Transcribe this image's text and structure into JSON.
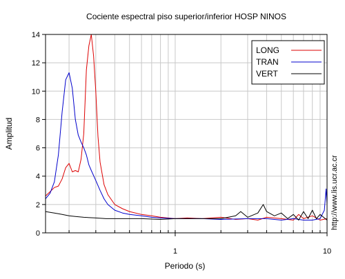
{
  "chart_data": {
    "type": "line",
    "title": "Cociente espectral piso superior/inferior  HOSP NINOS",
    "xlabel": "Periodo (s)",
    "ylabel": "Amplitud",
    "x_scale": "log",
    "xlim": [
      0.14,
      10
    ],
    "ylim": [
      0,
      14
    ],
    "grid": true,
    "legend_position": "top-right",
    "x_ticks": [
      1,
      10
    ],
    "x_tick_labels": [
      "1",
      "10"
    ],
    "y_ticks": [
      0,
      2,
      4,
      6,
      8,
      10,
      12,
      14
    ],
    "y_tick_labels": [
      "0",
      "2",
      "4",
      "6",
      "8",
      "10",
      "12",
      "14"
    ],
    "side_annotation": "http://www.lis.ucr.ac.cr",
    "series": [
      {
        "name": "LONG",
        "color": "#dd0000",
        "points": [
          [
            0.14,
            2.6
          ],
          [
            0.15,
            2.9
          ],
          [
            0.16,
            3.2
          ],
          [
            0.17,
            3.3
          ],
          [
            0.18,
            3.8
          ],
          [
            0.19,
            4.6
          ],
          [
            0.2,
            4.9
          ],
          [
            0.21,
            4.3
          ],
          [
            0.22,
            4.4
          ],
          [
            0.23,
            4.3
          ],
          [
            0.24,
            5.2
          ],
          [
            0.25,
            7.0
          ],
          [
            0.26,
            11.5
          ],
          [
            0.27,
            13.2
          ],
          [
            0.28,
            14.0
          ],
          [
            0.29,
            12.5
          ],
          [
            0.3,
            10.0
          ],
          [
            0.31,
            6.8
          ],
          [
            0.32,
            5.0
          ],
          [
            0.34,
            3.4
          ],
          [
            0.36,
            2.7
          ],
          [
            0.4,
            2.0
          ],
          [
            0.45,
            1.7
          ],
          [
            0.5,
            1.5
          ],
          [
            0.6,
            1.3
          ],
          [
            0.7,
            1.2
          ],
          [
            0.8,
            1.1
          ],
          [
            1.0,
            1.0
          ],
          [
            1.2,
            1.05
          ],
          [
            1.5,
            1.0
          ],
          [
            2.0,
            1.1
          ],
          [
            2.5,
            0.95
          ],
          [
            3.0,
            1.0
          ],
          [
            3.5,
            0.9
          ],
          [
            4.0,
            1.1
          ],
          [
            5.0,
            1.0
          ],
          [
            6.0,
            0.9
          ],
          [
            6.5,
            1.3
          ],
          [
            7.0,
            1.0
          ],
          [
            8.0,
            1.2
          ],
          [
            9.0,
            0.9
          ],
          [
            10.0,
            1.0
          ]
        ]
      },
      {
        "name": "TRAN",
        "color": "#0000cc",
        "points": [
          [
            0.14,
            2.4
          ],
          [
            0.15,
            2.8
          ],
          [
            0.16,
            3.6
          ],
          [
            0.17,
            5.5
          ],
          [
            0.18,
            8.5
          ],
          [
            0.19,
            10.8
          ],
          [
            0.2,
            11.3
          ],
          [
            0.21,
            10.2
          ],
          [
            0.22,
            8.0
          ],
          [
            0.23,
            6.9
          ],
          [
            0.24,
            6.4
          ],
          [
            0.25,
            6.0
          ],
          [
            0.26,
            5.5
          ],
          [
            0.27,
            4.8
          ],
          [
            0.28,
            4.4
          ],
          [
            0.3,
            3.7
          ],
          [
            0.32,
            3.0
          ],
          [
            0.34,
            2.4
          ],
          [
            0.36,
            2.0
          ],
          [
            0.4,
            1.6
          ],
          [
            0.45,
            1.4
          ],
          [
            0.5,
            1.3
          ],
          [
            0.6,
            1.2
          ],
          [
            0.7,
            1.1
          ],
          [
            0.8,
            1.05
          ],
          [
            1.0,
            1.0
          ],
          [
            1.5,
            1.0
          ],
          [
            2.0,
            0.95
          ],
          [
            3.0,
            1.0
          ],
          [
            4.0,
            1.0
          ],
          [
            5.0,
            0.9
          ],
          [
            6.0,
            1.0
          ],
          [
            7.0,
            0.9
          ],
          [
            8.0,
            0.9
          ],
          [
            9.0,
            1.0
          ],
          [
            9.6,
            1.6
          ],
          [
            9.85,
            3.1
          ],
          [
            10.0,
            2.0
          ]
        ]
      },
      {
        "name": "VERT",
        "color": "#000000",
        "points": [
          [
            0.14,
            1.5
          ],
          [
            0.15,
            1.45
          ],
          [
            0.16,
            1.4
          ],
          [
            0.17,
            1.35
          ],
          [
            0.18,
            1.3
          ],
          [
            0.2,
            1.2
          ],
          [
            0.22,
            1.15
          ],
          [
            0.25,
            1.1
          ],
          [
            0.3,
            1.05
          ],
          [
            0.35,
            1.0
          ],
          [
            0.4,
            1.0
          ],
          [
            0.5,
            1.0
          ],
          [
            0.6,
            1.0
          ],
          [
            0.8,
            0.95
          ],
          [
            1.0,
            1.0
          ],
          [
            1.5,
            1.0
          ],
          [
            2.0,
            1.0
          ],
          [
            2.5,
            1.2
          ],
          [
            2.7,
            1.5
          ],
          [
            3.0,
            1.1
          ],
          [
            3.5,
            1.4
          ],
          [
            3.8,
            2.0
          ],
          [
            4.0,
            1.5
          ],
          [
            4.5,
            1.2
          ],
          [
            5.0,
            1.4
          ],
          [
            5.5,
            1.0
          ],
          [
            6.0,
            1.3
          ],
          [
            6.5,
            0.9
          ],
          [
            7.0,
            1.5
          ],
          [
            7.5,
            1.0
          ],
          [
            8.0,
            1.6
          ],
          [
            8.5,
            1.0
          ],
          [
            9.0,
            1.3
          ],
          [
            10.0,
            0.9
          ]
        ]
      }
    ]
  }
}
